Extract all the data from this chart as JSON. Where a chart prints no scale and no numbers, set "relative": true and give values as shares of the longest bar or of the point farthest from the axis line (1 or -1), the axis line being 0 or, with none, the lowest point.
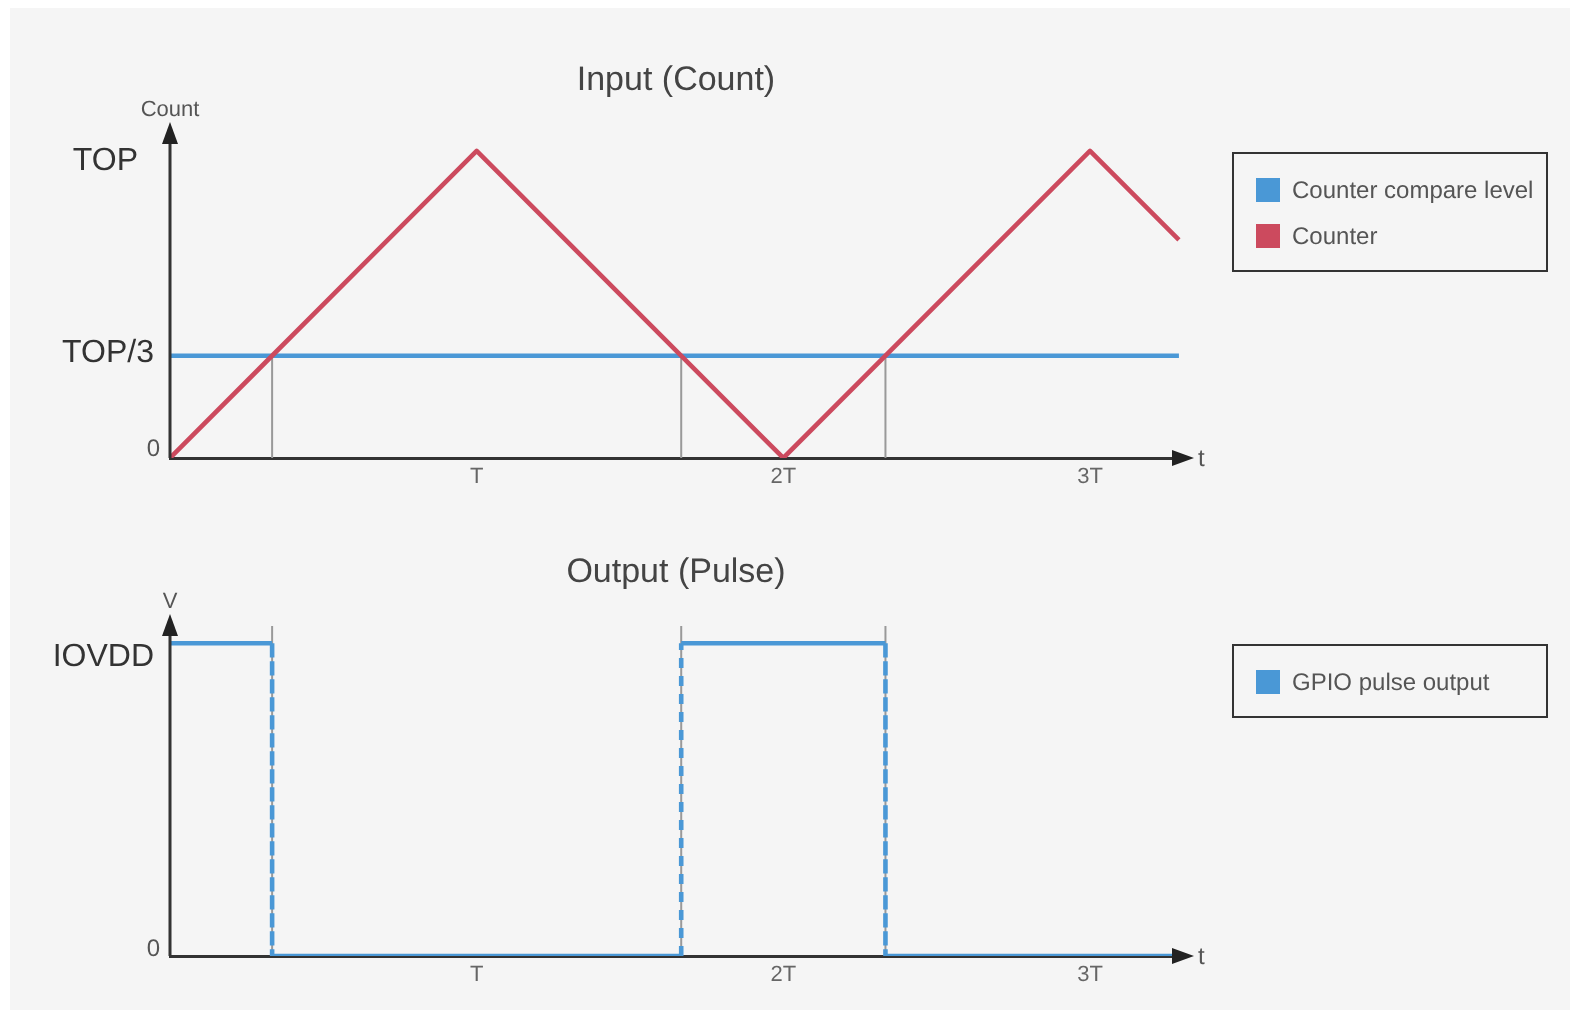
{
  "chart_data": [
    {
      "type": "line",
      "title": "Input (Count)",
      "xlabel": "t",
      "ylabel": "Count",
      "legend": "right",
      "relative": true,
      "xlim": [
        0,
        3.3
      ],
      "xticks": [
        {
          "value": 1,
          "label": "T"
        },
        {
          "value": 2,
          "label": "2T"
        },
        {
          "value": 3,
          "label": "3T"
        }
      ],
      "annotations": [
        "TOP",
        "TOP/3",
        "0"
      ],
      "series": [
        {
          "color": "#999999",
          "x": [
            0.333,
            0.333
          ],
          "values": [
            0.333,
            0
          ]
        },
        {
          "color": "#999999",
          "x": [
            1.667,
            1.667
          ],
          "values": [
            0.333,
            0
          ]
        },
        {
          "color": "#999999",
          "x": [
            2.333,
            2.333
          ],
          "values": [
            0.333,
            0
          ]
        },
        {
          "name": "Counter compare level",
          "color": "#4a98d6",
          "x": [
            0,
            3.29
          ],
          "values": [
            0.333,
            0.333
          ]
        },
        {
          "name": "Counter",
          "color": "#cc4a5e",
          "x": [
            0,
            1,
            2,
            3,
            3.29
          ],
          "values": [
            0,
            1,
            0,
            1,
            0.71
          ]
        }
      ]
    },
    {
      "type": "step",
      "title": "Output (Pulse)",
      "xlabel": "t",
      "ylabel": "V",
      "legend": "right",
      "relative": true,
      "xlim": [
        0,
        3.3
      ],
      "xticks": [
        {
          "value": 1,
          "label": "T"
        },
        {
          "value": 2,
          "label": "2T"
        },
        {
          "value": 3,
          "label": "3T"
        }
      ],
      "annotations": [
        "IOVDD",
        "0"
      ],
      "ref_lines": [
        {
          "axis": "x",
          "value": 0.333,
          "color": "#999999"
        },
        {
          "axis": "x",
          "value": 1.667,
          "color": "#999999"
        },
        {
          "axis": "x",
          "value": 2.333,
          "color": "#999999"
        }
      ],
      "series": [
        {
          "name": "GPIO pulse output",
          "color": "#4a98d6",
          "x": [
            0,
            0.333,
            0.333,
            1.667,
            1.667,
            2.333,
            2.333,
            3.29
          ],
          "values": [
            1,
            1,
            0,
            0,
            1,
            1,
            0,
            0
          ]
        }
      ]
    }
  ]
}
